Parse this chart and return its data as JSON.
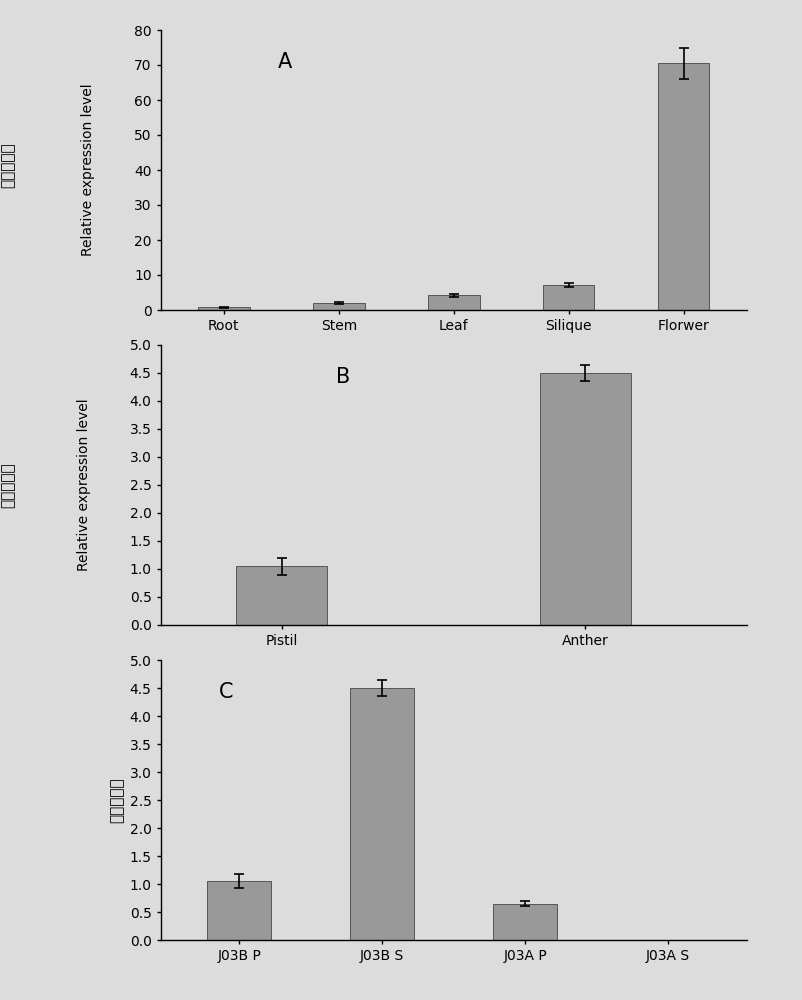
{
  "panel_A": {
    "categories": [
      "Root",
      "Stem",
      "Leaf",
      "Silique",
      "Florwer"
    ],
    "values": [
      0.8,
      2.0,
      4.2,
      7.2,
      70.5
    ],
    "errors": [
      0.15,
      0.25,
      0.5,
      0.5,
      4.5
    ],
    "ylim": [
      0,
      80
    ],
    "yticks": [
      0,
      10,
      20,
      30,
      40,
      50,
      60,
      70,
      80
    ],
    "ylabel_cn": "相对表达量",
    "ylabel_en": "Relative expression level",
    "label": "A"
  },
  "panel_B": {
    "categories": [
      "Pistil",
      "Anther"
    ],
    "values": [
      1.05,
      4.5
    ],
    "errors": [
      0.15,
      0.15
    ],
    "ylim": [
      0,
      5
    ],
    "yticks": [
      0,
      0.5,
      1.0,
      1.5,
      2.0,
      2.5,
      3.0,
      3.5,
      4.0,
      4.5,
      5.0
    ],
    "ylabel_cn": "相对表达量",
    "ylabel_en": "Relative expression level",
    "label": "B"
  },
  "panel_C": {
    "categories": [
      "J03B P",
      "J03B S",
      "J03A P",
      "J03A S"
    ],
    "values": [
      1.05,
      4.5,
      0.65,
      0.0
    ],
    "errors": [
      0.12,
      0.15,
      0.05,
      0.0
    ],
    "ylim": [
      0,
      5
    ],
    "yticks": [
      0,
      0.5,
      1.0,
      1.5,
      2.0,
      2.5,
      3.0,
      3.5,
      4.0,
      4.5,
      5.0
    ],
    "ylabel_cn": "相对表达量",
    "label": "C"
  },
  "bar_color": "#999999",
  "bar_edgecolor": "#555555",
  "background_color": "#dcdcdc",
  "font_size_tick": 10,
  "font_size_label": 10,
  "font_size_cn": 11,
  "font_size_panel": 15
}
